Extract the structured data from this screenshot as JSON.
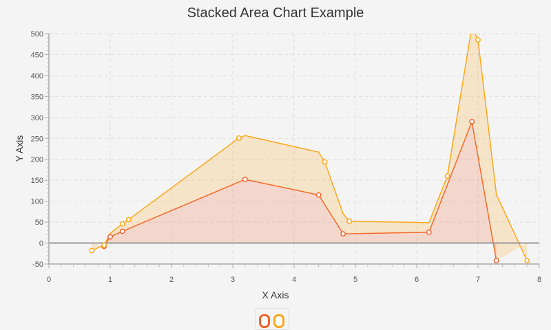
{
  "chart_data": {
    "type": "area",
    "stacked": true,
    "title": "Stacked Area Chart Example",
    "xlabel": "X Axis",
    "ylabel": "Y Axis",
    "xlim": [
      0,
      8
    ],
    "ylim": [
      -50,
      500
    ],
    "x_ticks": [
      0,
      1,
      2,
      3,
      4,
      5,
      6,
      7,
      8
    ],
    "y_ticks": [
      -50,
      0,
      50,
      100,
      150,
      200,
      250,
      300,
      350,
      400,
      450,
      500
    ],
    "grid": true,
    "legend": "bottom",
    "series": [
      {
        "color": "#f3622d",
        "points": [
          [
            0.9,
            -8
          ],
          [
            1.0,
            15
          ],
          [
            1.2,
            28
          ],
          [
            3.2,
            152
          ],
          [
            4.4,
            115
          ],
          [
            4.8,
            22
          ],
          [
            6.2,
            26
          ],
          [
            6.9,
            290
          ],
          [
            7.3,
            -42
          ]
        ]
      },
      {
        "color": "#fba71b",
        "points": [
          [
            0.7,
            -18
          ],
          [
            0.9,
            3
          ],
          [
            1.2,
            18
          ],
          [
            1.3,
            22
          ],
          [
            3.1,
            105
          ],
          [
            4.5,
            102
          ],
          [
            4.9,
            30
          ],
          [
            6.5,
            21
          ],
          [
            7.0,
            278
          ],
          [
            7.8,
            -42
          ]
        ]
      }
    ]
  }
}
